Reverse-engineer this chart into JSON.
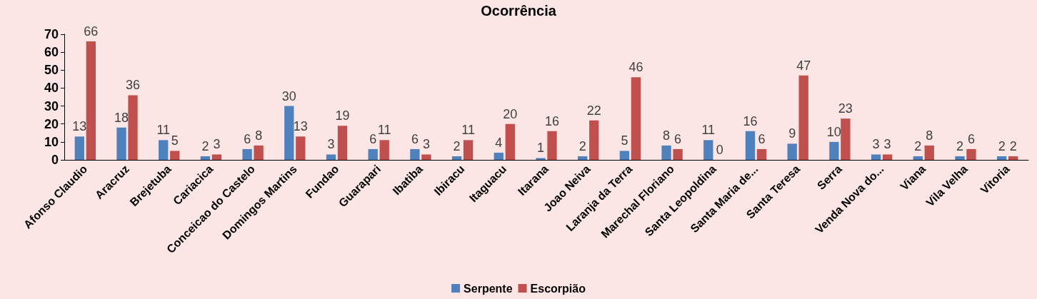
{
  "chart_data": {
    "type": "bar",
    "title": "Ocorrência",
    "categories": [
      "Afonso Claudio",
      "Aracruz",
      "Brejetuba",
      "Cariacica",
      "Conceicao do Castelo",
      "Domingos Martins",
      "Fundao",
      "Guarapari",
      "Ibatiba",
      "Ibiracu",
      "Itaguacu",
      "Itarana",
      "Joao Neiva",
      "Laranja da Terra",
      "Marechal Floriano",
      "Santa Leopoldina",
      "Santa Maria de...",
      "Santa Teresa",
      "Serra",
      "Venda Nova do...",
      "Viana",
      "Vila Velha",
      "Vitoria"
    ],
    "series": [
      {
        "name": "Serpente",
        "color": "#4f81bd",
        "values": [
          13,
          18,
          11,
          2,
          6,
          30,
          3,
          6,
          6,
          2,
          4,
          1,
          2,
          5,
          8,
          11,
          16,
          9,
          10,
          3,
          2,
          2,
          2
        ]
      },
      {
        "name": "Escorpião",
        "color": "#c0504d",
        "values": [
          66,
          36,
          5,
          3,
          8,
          13,
          19,
          11,
          3,
          11,
          20,
          16,
          22,
          46,
          6,
          0,
          6,
          47,
          23,
          3,
          8,
          6,
          2
        ]
      }
    ],
    "ylim": [
      0,
      70
    ],
    "yticks": [
      0,
      10,
      20,
      30,
      40,
      50,
      60,
      70
    ],
    "grid": false,
    "legend": "bottom",
    "data_labels": true
  }
}
